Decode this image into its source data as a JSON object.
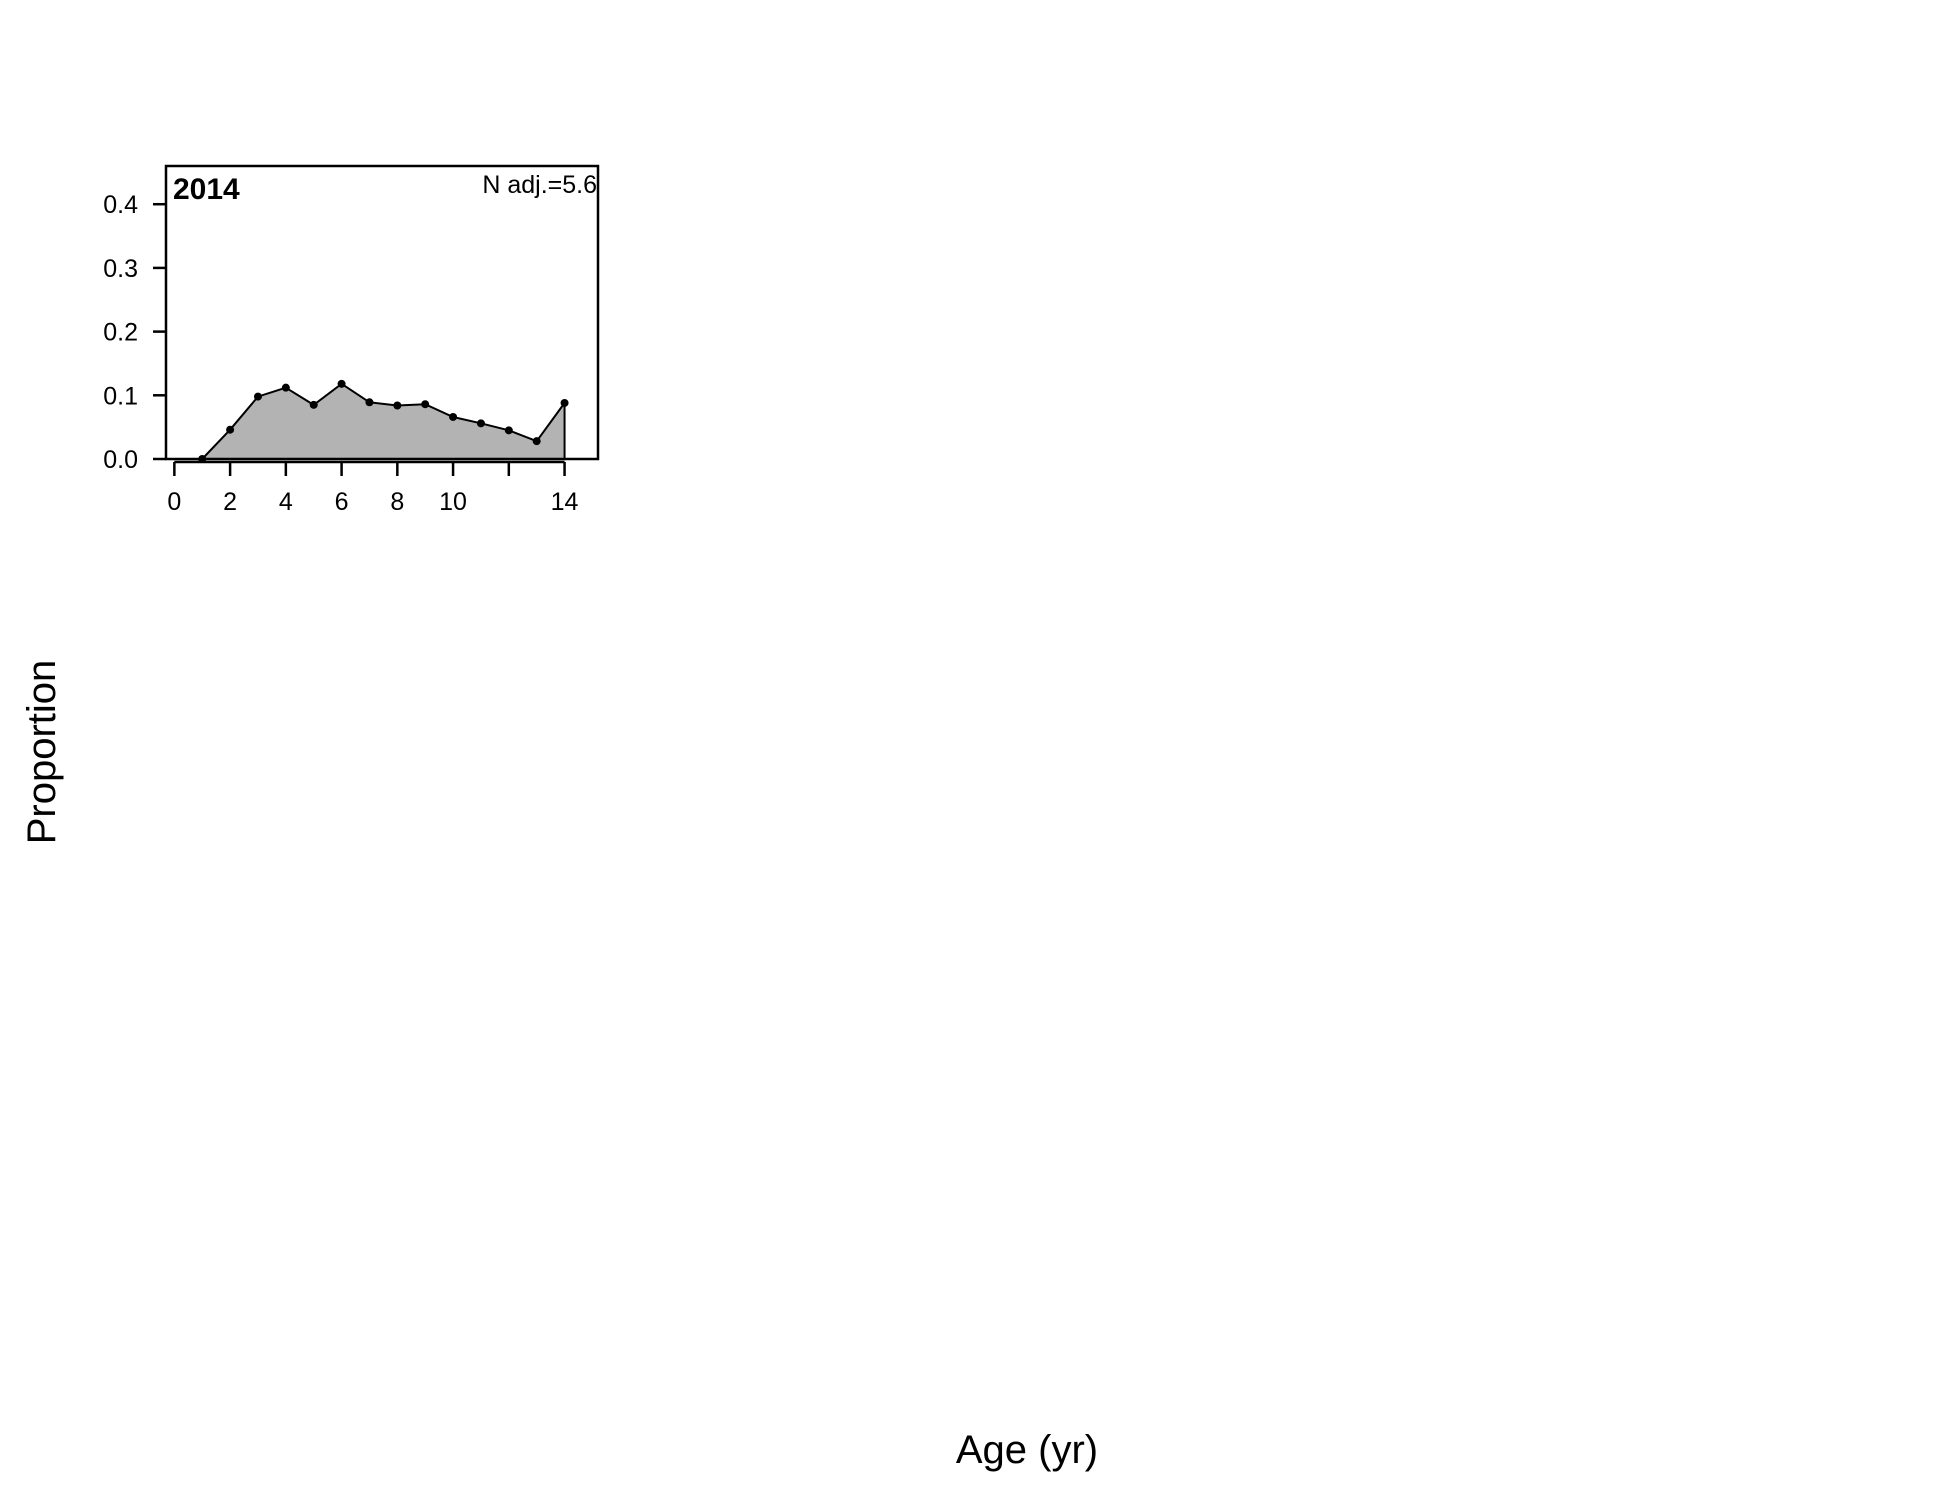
{
  "chart_data": {
    "type": "area",
    "xlabel": "Age (yr)",
    "ylabel": "Proportion",
    "panels": [
      {
        "year": "2014",
        "n_label": "N adj.=5.6",
        "x": [
          1,
          2,
          3,
          4,
          5,
          6,
          7,
          8,
          9,
          10,
          11,
          12,
          13,
          14
        ],
        "values": [
          0.0,
          0.046,
          0.098,
          0.112,
          0.085,
          0.118,
          0.089,
          0.084,
          0.086,
          0.066,
          0.056,
          0.045,
          0.028,
          0.088
        ],
        "xlim": [
          -0.3,
          15.2
        ],
        "ylim": [
          0,
          0.46
        ],
        "x_ticks": [
          0,
          2,
          4,
          6,
          8,
          10,
          12,
          14
        ],
        "x_tick_labels": [
          "0",
          "2",
          "4",
          "6",
          "8",
          "10",
          "",
          "14"
        ],
        "y_ticks": [
          0.0,
          0.1,
          0.2,
          0.3,
          0.4
        ],
        "y_tick_labels": [
          "0.0",
          "0.1",
          "0.2",
          "0.3",
          "0.4"
        ],
        "fill_color": "#b3b3b3",
        "line_color": "#000000"
      }
    ]
  }
}
